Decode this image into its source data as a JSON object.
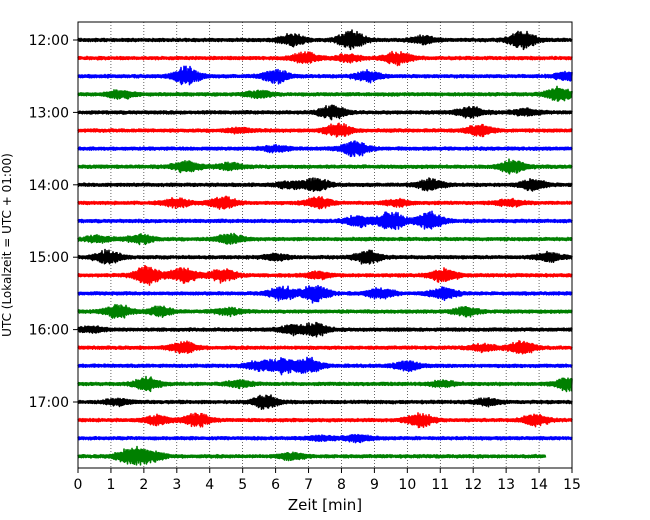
{
  "chart_data": {
    "type": "line",
    "title": "",
    "xlabel": "Zeit  [min]",
    "ylabel": "UTC (Lokalzeit = UTC + 01:00)",
    "xlim": [
      0,
      15
    ],
    "x_ticks": [
      "0",
      "1",
      "2",
      "3",
      "4",
      "5",
      "6",
      "7",
      "8",
      "9",
      "10",
      "11",
      "12",
      "13",
      "14",
      "15"
    ],
    "y_ticks": [
      "12:00",
      "13:00",
      "14:00",
      "15:00",
      "16:00",
      "17:00"
    ],
    "grid": "vertical dotted",
    "colors": [
      "#000000",
      "#ff0000",
      "#0000ff",
      "#008000"
    ],
    "traces": [
      {
        "start": "12:00",
        "color": "#000000",
        "end_min": 15,
        "bursts": [
          {
            "t": 6.5,
            "a": 0.5
          },
          {
            "t": 8.3,
            "a": 0.8
          },
          {
            "t": 13.5,
            "a": 0.8
          },
          {
            "t": 10.5,
            "a": 0.35
          }
        ]
      },
      {
        "start": "12:15",
        "color": "#ff0000",
        "end_min": 15,
        "bursts": [
          {
            "t": 6.9,
            "a": 0.5
          },
          {
            "t": 9.7,
            "a": 0.6
          },
          {
            "t": 8.2,
            "a": 0.3
          }
        ]
      },
      {
        "start": "12:30",
        "color": "#0000ff",
        "end_min": 15,
        "bursts": [
          {
            "t": 3.3,
            "a": 0.8
          },
          {
            "t": 6,
            "a": 0.6
          },
          {
            "t": 8.8,
            "a": 0.5
          },
          {
            "t": 14.9,
            "a": 0.4
          }
        ]
      },
      {
        "start": "12:45",
        "color": "#008000",
        "end_min": 15,
        "bursts": [
          {
            "t": 1.3,
            "a": 0.4
          },
          {
            "t": 5.5,
            "a": 0.3
          },
          {
            "t": 14.6,
            "a": 0.6
          }
        ]
      },
      {
        "start": "13:00",
        "color": "#000000",
        "end_min": 15,
        "bursts": [
          {
            "t": 7.7,
            "a": 0.6
          },
          {
            "t": 11.9,
            "a": 0.5
          },
          {
            "t": 13.6,
            "a": 0.3
          }
        ]
      },
      {
        "start": "13:15",
        "color": "#ff0000",
        "end_min": 15,
        "bursts": [
          {
            "t": 7.9,
            "a": 0.6
          },
          {
            "t": 12.2,
            "a": 0.5
          },
          {
            "t": 4.9,
            "a": 0.2
          }
        ]
      },
      {
        "start": "13:30",
        "color": "#0000ff",
        "end_min": 15,
        "bursts": [
          {
            "t": 8.4,
            "a": 0.7
          },
          {
            "t": 6,
            "a": 0.25
          }
        ]
      },
      {
        "start": "13:45",
        "color": "#008000",
        "end_min": 15,
        "bursts": [
          {
            "t": 3.3,
            "a": 0.5
          },
          {
            "t": 13.2,
            "a": 0.6
          },
          {
            "t": 4.6,
            "a": 0.3
          }
        ]
      },
      {
        "start": "14:00",
        "color": "#000000",
        "end_min": 15,
        "bursts": [
          {
            "t": 7.2,
            "a": 0.6
          },
          {
            "t": 10.7,
            "a": 0.5
          },
          {
            "t": 13.8,
            "a": 0.5
          },
          {
            "t": 6.4,
            "a": 0.3
          }
        ]
      },
      {
        "start": "14:15",
        "color": "#ff0000",
        "end_min": 15,
        "bursts": [
          {
            "t": 4.4,
            "a": 0.6
          },
          {
            "t": 7.3,
            "a": 0.5
          },
          {
            "t": 3,
            "a": 0.4
          },
          {
            "t": 9.7,
            "a": 0.3
          },
          {
            "t": 13.1,
            "a": 0.3
          }
        ]
      },
      {
        "start": "14:30",
        "color": "#0000ff",
        "end_min": 15,
        "bursts": [
          {
            "t": 9.5,
            "a": 0.9
          },
          {
            "t": 10.7,
            "a": 0.8
          },
          {
            "t": 8.5,
            "a": 0.5
          }
        ]
      },
      {
        "start": "14:45",
        "color": "#008000",
        "end_min": 15,
        "bursts": [
          {
            "t": 1.9,
            "a": 0.4
          },
          {
            "t": 4.6,
            "a": 0.4
          },
          {
            "t": 0.6,
            "a": 0.3
          }
        ]
      },
      {
        "start": "15:00",
        "color": "#000000",
        "end_min": 15,
        "bursts": [
          {
            "t": 0.9,
            "a": 0.6
          },
          {
            "t": 8.8,
            "a": 0.6
          },
          {
            "t": 14.3,
            "a": 0.4
          },
          {
            "t": 6,
            "a": 0.25
          }
        ]
      },
      {
        "start": "15:15",
        "color": "#ff0000",
        "end_min": 15,
        "bursts": [
          {
            "t": 2.1,
            "a": 0.8
          },
          {
            "t": 3.2,
            "a": 0.7
          },
          {
            "t": 4.4,
            "a": 0.6
          },
          {
            "t": 11.1,
            "a": 0.6
          },
          {
            "t": 7.3,
            "a": 0.3
          }
        ]
      },
      {
        "start": "15:30",
        "color": "#0000ff",
        "end_min": 15,
        "bursts": [
          {
            "t": 6.2,
            "a": 0.6
          },
          {
            "t": 7.2,
            "a": 0.8
          },
          {
            "t": 9.2,
            "a": 0.5
          },
          {
            "t": 11.1,
            "a": 0.5
          }
        ]
      },
      {
        "start": "15:45",
        "color": "#008000",
        "end_min": 15,
        "bursts": [
          {
            "t": 1.2,
            "a": 0.6
          },
          {
            "t": 2.5,
            "a": 0.4
          },
          {
            "t": 4.6,
            "a": 0.3
          },
          {
            "t": 11.8,
            "a": 0.4
          }
        ]
      },
      {
        "start": "16:00",
        "color": "#000000",
        "end_min": 15,
        "bursts": [
          {
            "t": 7.2,
            "a": 0.6
          },
          {
            "t": 6.5,
            "a": 0.35
          },
          {
            "t": 0.4,
            "a": 0.25
          }
        ]
      },
      {
        "start": "16:15",
        "color": "#ff0000",
        "end_min": 15,
        "bursts": [
          {
            "t": 3.2,
            "a": 0.5
          },
          {
            "t": 13.5,
            "a": 0.6
          },
          {
            "t": 12.3,
            "a": 0.3
          }
        ]
      },
      {
        "start": "16:30",
        "color": "#0000ff",
        "end_min": 15,
        "bursts": [
          {
            "t": 6.2,
            "a": 0.7
          },
          {
            "t": 7,
            "a": 0.7
          },
          {
            "t": 10,
            "a": 0.4
          },
          {
            "t": 5.5,
            "a": 0.4
          }
        ]
      },
      {
        "start": "16:45",
        "color": "#008000",
        "end_min": 15,
        "bursts": [
          {
            "t": 2.1,
            "a": 0.6
          },
          {
            "t": 4.9,
            "a": 0.3
          },
          {
            "t": 14.9,
            "a": 0.6
          },
          {
            "t": 11.1,
            "a": 0.25
          }
        ]
      },
      {
        "start": "17:00",
        "color": "#000000",
        "end_min": 15,
        "bursts": [
          {
            "t": 5.7,
            "a": 0.6
          },
          {
            "t": 1.2,
            "a": 0.3
          },
          {
            "t": 12.4,
            "a": 0.3
          }
        ]
      },
      {
        "start": "17:15",
        "color": "#ff0000",
        "end_min": 15,
        "bursts": [
          {
            "t": 3.6,
            "a": 0.6
          },
          {
            "t": 10.4,
            "a": 0.6
          },
          {
            "t": 13.9,
            "a": 0.5
          },
          {
            "t": 2.4,
            "a": 0.4
          }
        ]
      },
      {
        "start": "17:30",
        "color": "#0000ff",
        "end_min": 15,
        "bursts": [
          {
            "t": 8.5,
            "a": 0.3
          },
          {
            "t": 7.4,
            "a": 0.2
          }
        ]
      },
      {
        "start": "17:45",
        "color": "#008000",
        "end_min": 14.2,
        "bursts": [
          {
            "t": 1.6,
            "a": 0.8
          },
          {
            "t": 2.2,
            "a": 0.5
          },
          {
            "t": 6.5,
            "a": 0.3
          }
        ]
      }
    ]
  }
}
